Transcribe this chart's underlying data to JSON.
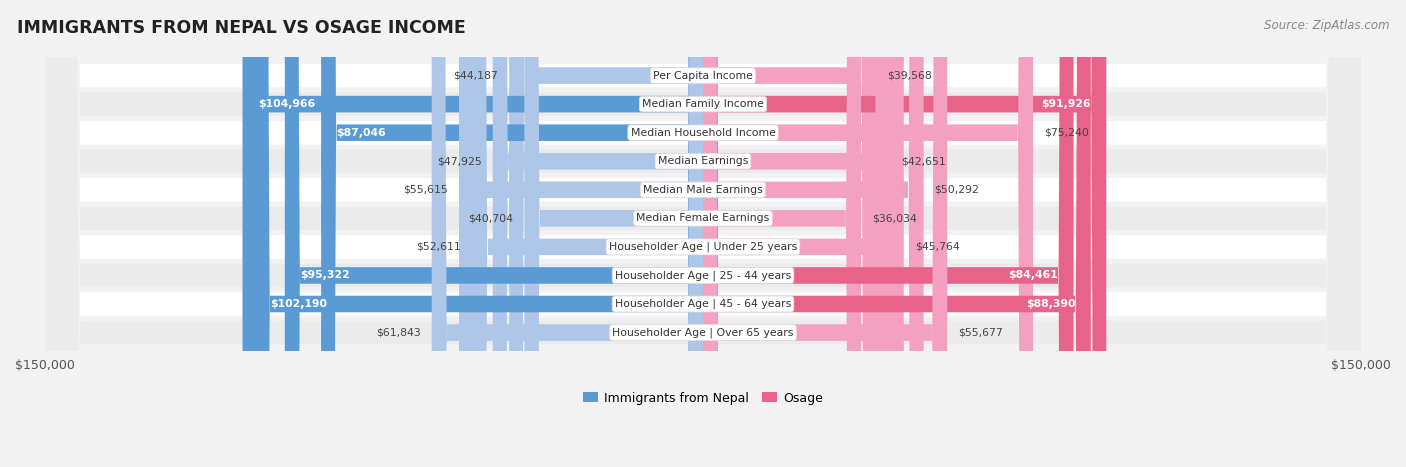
{
  "title": "IMMIGRANTS FROM NEPAL VS OSAGE INCOME",
  "source": "Source: ZipAtlas.com",
  "categories": [
    "Per Capita Income",
    "Median Family Income",
    "Median Household Income",
    "Median Earnings",
    "Median Male Earnings",
    "Median Female Earnings",
    "Householder Age | Under 25 years",
    "Householder Age | 25 - 44 years",
    "Householder Age | 45 - 64 years",
    "Householder Age | Over 65 years"
  ],
  "nepal_values": [
    44187,
    104966,
    87046,
    47925,
    55615,
    40704,
    52611,
    95322,
    102190,
    61843
  ],
  "osage_values": [
    39568,
    91926,
    75240,
    42651,
    50292,
    36034,
    45764,
    84461,
    88390,
    55677
  ],
  "nepal_labels": [
    "$44,187",
    "$104,966",
    "$87,046",
    "$47,925",
    "$55,615",
    "$40,704",
    "$52,611",
    "$95,322",
    "$102,190",
    "$61,843"
  ],
  "osage_labels": [
    "$39,568",
    "$91,926",
    "$75,240",
    "$42,651",
    "$50,292",
    "$36,034",
    "$45,764",
    "$84,461",
    "$88,390",
    "$55,677"
  ],
  "nepal_color_light": "#aec6e8",
  "nepal_color_dark": "#5b9bd5",
  "osage_color_light": "#f4a0c0",
  "osage_color_dark": "#e8638a",
  "nepal_dark_threshold": 80000,
  "osage_dark_threshold": 80000,
  "max_value": 150000,
  "background_color": "#f2f2f2",
  "row_bg_odd": "#ffffff",
  "row_bg_even": "#ebebeb",
  "legend_nepal": "Immigrants from Nepal",
  "legend_osage": "Osage"
}
